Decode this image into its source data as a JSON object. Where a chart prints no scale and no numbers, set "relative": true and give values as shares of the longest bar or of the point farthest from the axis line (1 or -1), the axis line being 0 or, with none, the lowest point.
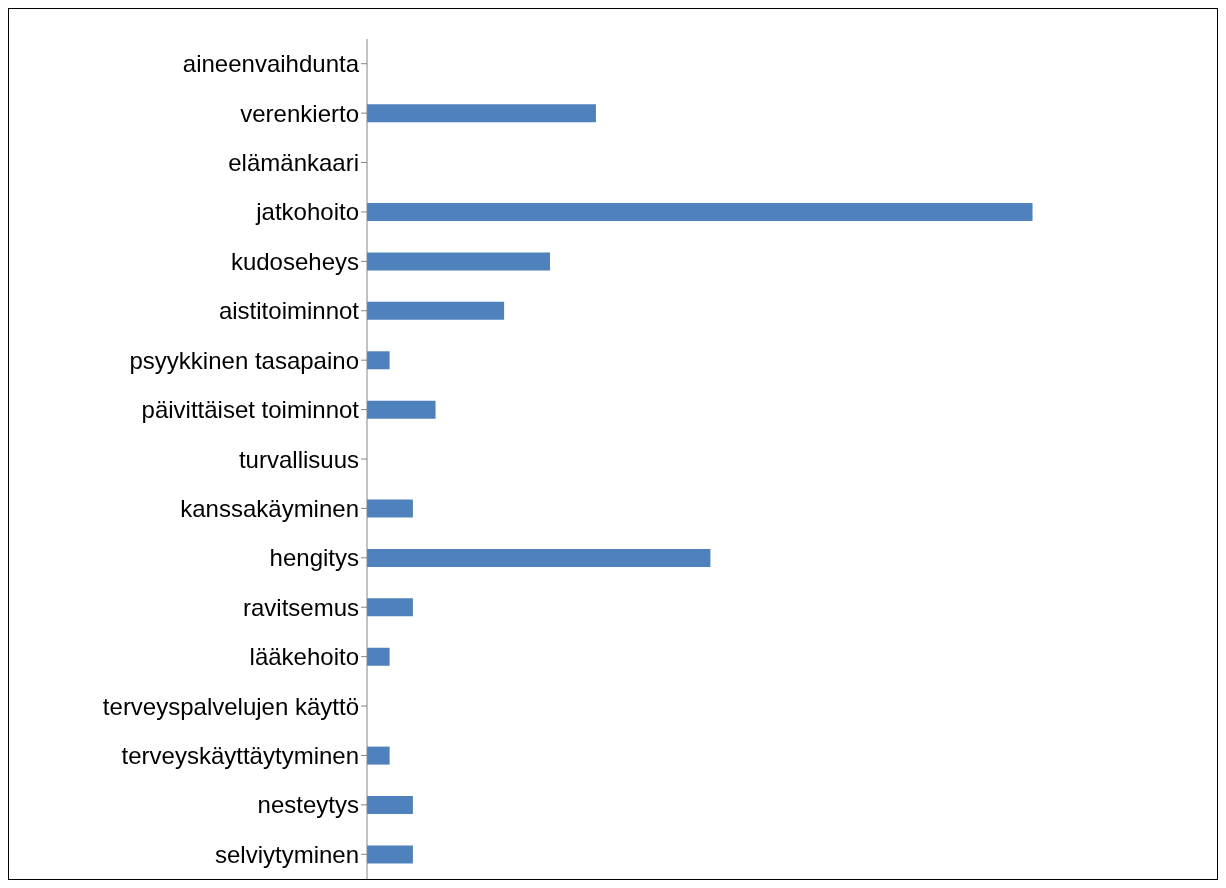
{
  "chart_data": {
    "type": "bar",
    "orientation": "horizontal",
    "relative": true,
    "color": "#4f81bd",
    "categories": [
      "aineenvaihdunta",
      "verenkierto",
      "elämänkaari",
      "jatkohoito",
      "kudoseheys",
      "aistitoiminnot",
      "psyykkinen tasapaino",
      "päivittäiset toiminnot",
      "turvallisuus",
      "kanssakäyminen",
      "hengitys",
      "ravitsemus",
      "lääkehoito",
      "terveyspalvelujen käyttö",
      "terveyskäyttäytyminen",
      "nesteytys",
      "selviytyminen"
    ],
    "values": [
      0,
      0.344,
      0,
      1,
      0.275,
      0.206,
      0.034,
      0.103,
      0,
      0.069,
      0.516,
      0.069,
      0.034,
      0,
      0.034,
      0.069,
      0.069
    ]
  }
}
